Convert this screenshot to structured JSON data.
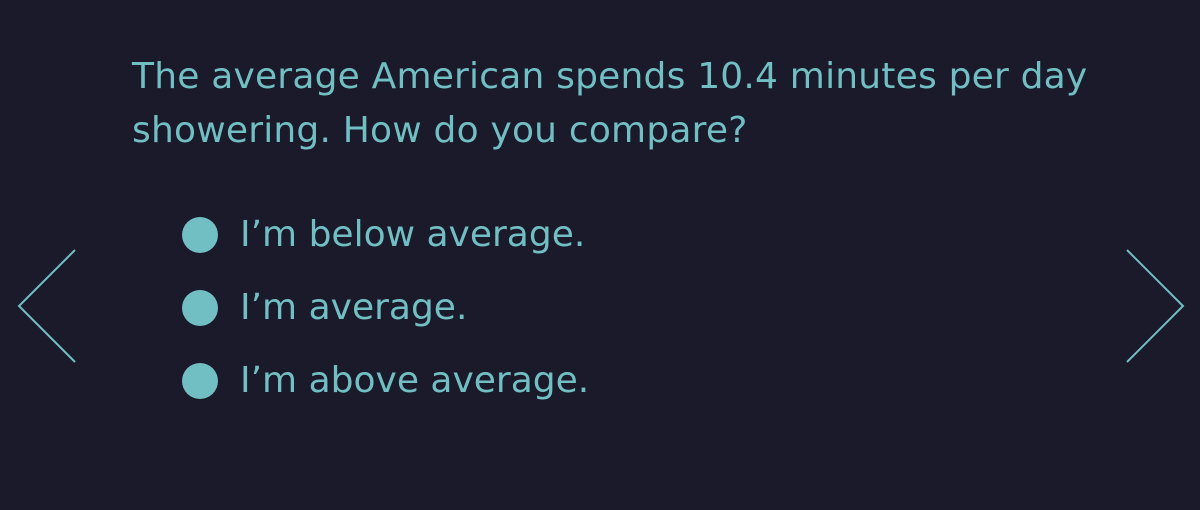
{
  "question": {
    "text": "The average American spends 10.4 minutes per day showering. How do you compare?"
  },
  "options": [
    {
      "label": "I’m below average."
    },
    {
      "label": "I’m average."
    },
    {
      "label": "I’m above average."
    }
  ],
  "navigation": {
    "prev_icon": "chevron-left-icon",
    "next_icon": "chevron-right-icon"
  },
  "colors": {
    "background": "#1a1a2b",
    "accent": "#71bfc3"
  }
}
